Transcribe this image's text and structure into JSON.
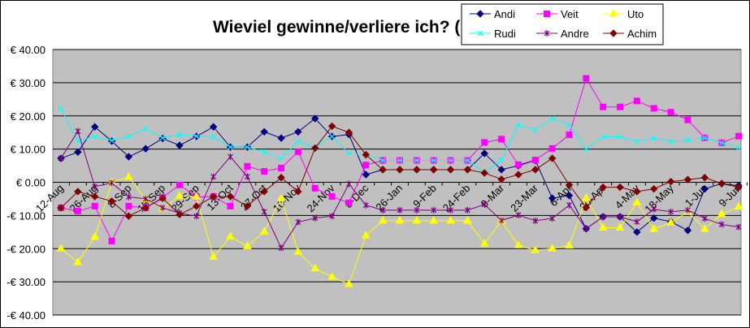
{
  "chart_data": {
    "type": "line",
    "title": "Wieviel gewinne/verliere ich? (",
    "xlabel": "",
    "ylabel": "",
    "ylim": [
      -40,
      40
    ],
    "y_ticks": [
      "€ 40.00",
      "€ 30.00",
      "€ 20.00",
      "€ 10.00",
      "€ 0.00",
      "-€ 10.00",
      "-€ 20.00",
      "-€ 30.00",
      "-€ 40.00"
    ],
    "y_tick_values": [
      40,
      30,
      20,
      10,
      0,
      -10,
      -20,
      -30,
      -40
    ],
    "x_tick_labels": [
      "12-Aug",
      "26-Aug",
      "8-Sep",
      "15-Sep",
      "29-Sep",
      "13-Oct",
      "27-Oct",
      "10-Nov",
      "24-Nov",
      "8-Dec",
      "26-Jan",
      "9-Feb",
      "24-Feb",
      "9-Mar",
      "23-Mar",
      "6-Apr",
      "20-Apr",
      "4-May",
      "18-May",
      "1-Jun",
      "9-Jun"
    ],
    "x_tick_every": 2,
    "n_points": 41,
    "grid": true,
    "legend": "top-right",
    "series": [
      {
        "name": "Andi",
        "color": "#000080",
        "marker": "diamond",
        "values": [
          7.2,
          9.1,
          16.7,
          12.4,
          7.7,
          10.1,
          13.2,
          11.1,
          13.8,
          16.7,
          10.6,
          10.6,
          15.2,
          13.3,
          15.2,
          19.2,
          13.8,
          14.4,
          2.3,
          3.8,
          3.8,
          3.8,
          3.8,
          3.8,
          3.8,
          8.7,
          3.8,
          5.0,
          6.6,
          -4.8,
          -4.0,
          -14.0,
          -10.4,
          -10.4,
          -15.0,
          -10.8,
          -11.9,
          -14.5,
          -2.0,
          -0.4,
          -1.0
        ]
      },
      {
        "name": "Veit",
        "color": "#ff00ff",
        "marker": "square",
        "values": [
          -7.7,
          -8.7,
          -7.2,
          -17.7,
          -7.2,
          -7.7,
          -4.6,
          -0.8,
          -4.4,
          -4.3,
          -7.2,
          4.8,
          3.3,
          4.3,
          9.2,
          -1.8,
          -4.3,
          -6.2,
          5.2,
          6.6,
          6.6,
          6.6,
          6.6,
          6.6,
          6.6,
          12.0,
          13.0,
          5.3,
          6.7,
          10.2,
          14.3,
          31.3,
          22.7,
          22.7,
          24.5,
          22.3,
          21.1,
          18.8,
          13.4,
          11.9,
          13.9
        ]
      },
      {
        "name": "Uto",
        "color": "#ffff00",
        "marker": "triangle",
        "values": [
          -20,
          -24.1,
          -16.5,
          0,
          1.6,
          -5.1,
          -7.9,
          -4.1,
          -4.4,
          -22.5,
          -16.4,
          -19.3,
          -14.9,
          -4.9,
          -21,
          -26,
          -28.5,
          -30.7,
          -16.1,
          -11.6,
          -11.6,
          -11.6,
          -11.6,
          -11.6,
          -11.6,
          -18.5,
          -11.6,
          -19.0,
          -20.5,
          -20,
          -19.1,
          -4.8,
          -13.7,
          -13.7,
          -6.1,
          -14.1,
          -12.2,
          -8.9,
          -14.1,
          -9.6,
          -7.4
        ]
      },
      {
        "name": "Rudi",
        "color": "#00ffff",
        "marker": "x",
        "values": [
          22.2,
          12.4,
          13.8,
          12.6,
          13.8,
          16.2,
          13.4,
          14.3,
          13.9,
          13.8,
          10.6,
          10.6,
          9.1,
          7.2,
          12.3,
          10.5,
          13.8,
          8.7,
          8.3,
          6.6,
          6.6,
          6.6,
          6.6,
          6.6,
          6.6,
          3.0,
          6.7,
          17.3,
          15.8,
          19.2,
          17.2,
          10.0,
          13.7,
          13.7,
          12.3,
          13.3,
          12.3,
          12.7,
          13.4,
          11.9,
          10.4
        ]
      },
      {
        "name": "Andre",
        "color": "#800080",
        "marker": "star",
        "values": [
          7.2,
          15.4,
          -1.3,
          -0.2,
          -4.4,
          -5.0,
          -7.7,
          -9.3,
          -10.2,
          1.7,
          7.7,
          1.7,
          -8.9,
          -19.8,
          -12.0,
          -10.8,
          -10.2,
          -0.5,
          -6.9,
          -8.4,
          -8.4,
          -8.4,
          -8.4,
          -8.4,
          -8.4,
          -6.7,
          -11.5,
          -9.9,
          -11.6,
          -10.9,
          -6.9,
          -14.0,
          -10.4,
          -10.4,
          -11.9,
          -8.1,
          -8.9,
          -8.4,
          -10.9,
          -12.7,
          -13.5
        ]
      },
      {
        "name": "Achim",
        "color": "#800000",
        "marker": "circle",
        "values": [
          -7.7,
          -2.8,
          -4.3,
          -5.7,
          -10.2,
          -7.7,
          -4.8,
          -9.7,
          -7.2,
          -4.3,
          -4.3,
          -7.2,
          -2.8,
          1.4,
          -2.8,
          10.3,
          16.9,
          15.0,
          8.3,
          3.8,
          3.8,
          3.8,
          3.8,
          3.8,
          3.8,
          2.8,
          0.9,
          2.3,
          3.8,
          7.2,
          -0.8,
          -7.6,
          -1.5,
          -1.5,
          -2.8,
          -2.0,
          0.2,
          0.8,
          1.4,
          -0.4,
          -1.5
        ]
      }
    ]
  }
}
